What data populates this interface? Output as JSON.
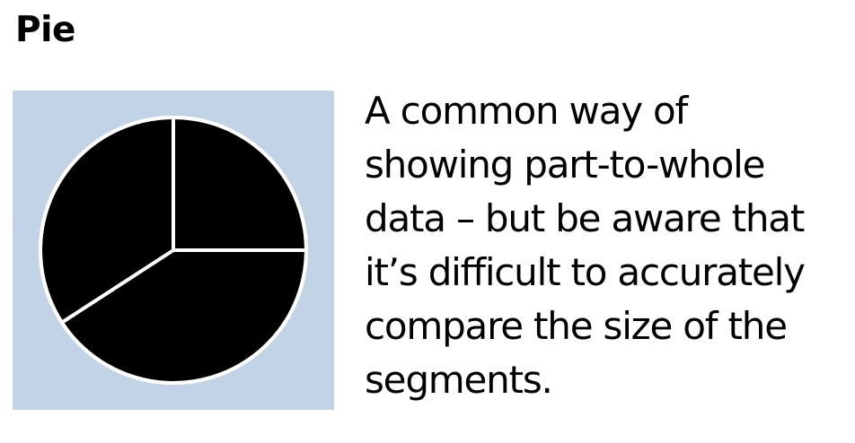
{
  "title": "Pie",
  "description_lines": [
    "A common way of",
    "showing part-to-whole",
    "data – but be aware that",
    "it’s difficult to accurately",
    "compare the size of the",
    "segments."
  ],
  "icon": {
    "name": "pie-chart-icon",
    "background_color": "#c3d3e6",
    "slice_color": "#000000",
    "divider_color": "#ffffff",
    "slice_boundaries_degrees_clockwise_from_top": [
      0,
      90,
      237
    ]
  }
}
